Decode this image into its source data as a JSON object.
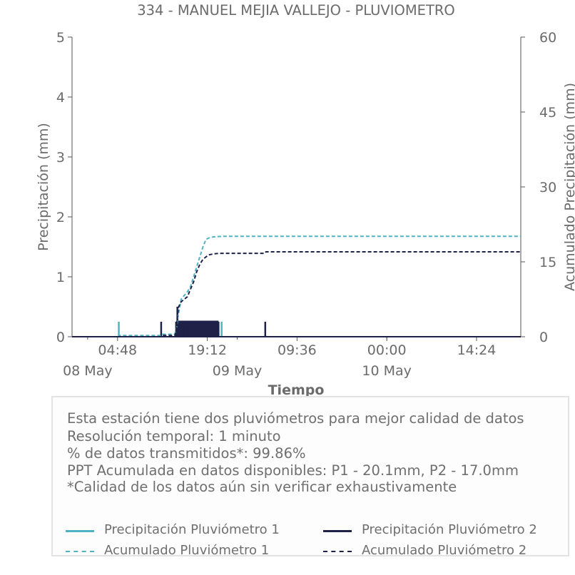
{
  "chart_data": {
    "type": "line",
    "title": "334 - MANUEL MEJIA VALLEJO - PLUVIOMETRO",
    "xlabel": "Tiempo",
    "ylabel_left": "Precipitación (mm)",
    "ylabel_right": "Acumulado Precipitación (mm)",
    "ylim_left": [
      0,
      5
    ],
    "ylim_right": [
      0,
      60
    ],
    "yticks_left": [
      "0",
      "1",
      "2",
      "3",
      "4",
      "5"
    ],
    "yticks_right": [
      "0",
      "15",
      "30",
      "45",
      "60"
    ],
    "x_major_ticks": [
      {
        "t": 4.8,
        "label": "04:48"
      },
      {
        "t": 19.2,
        "label": "19:12"
      },
      {
        "t": 33.6,
        "label": "09:36"
      },
      {
        "t": 48.0,
        "label": "00:00"
      },
      {
        "t": 62.4,
        "label": "14:24"
      }
    ],
    "x_date_labels": [
      {
        "t": 0,
        "label": "08 May"
      },
      {
        "t": 24,
        "label": "09 May"
      },
      {
        "t": 48,
        "label": "10 May"
      }
    ],
    "x_unit": "hours from 08 May 00:00",
    "xlim": [
      -2.5,
      69.5
    ],
    "series": [
      {
        "name": "Precipitación Pluviómetro 1",
        "axis": "left",
        "style": "solid",
        "color": "#4fb3c4",
        "points": [
          [
            5.0,
            0.25
          ],
          [
            14.2,
            0.25
          ],
          [
            14.6,
            0.25
          ],
          [
            15.0,
            0.25
          ],
          [
            15.4,
            0.25
          ],
          [
            15.8,
            0.25
          ],
          [
            16.2,
            0.25
          ],
          [
            16.6,
            0.25
          ],
          [
            17.0,
            0.25
          ],
          [
            17.4,
            0.25
          ],
          [
            17.8,
            0.25
          ],
          [
            18.2,
            0.25
          ],
          [
            18.6,
            0.25
          ],
          [
            19.0,
            0.25
          ],
          [
            19.4,
            0.25
          ],
          [
            19.8,
            0.25
          ],
          [
            20.2,
            0.25
          ],
          [
            20.5,
            0.25
          ],
          [
            21.0,
            0.25
          ],
          [
            21.5,
            0.25
          ]
        ]
      },
      {
        "name": "Precipitación Pluviómetro 2",
        "axis": "left",
        "style": "solid",
        "color": "#1e2148",
        "points": [
          [
            11.8,
            0.25
          ],
          [
            14.2,
            0.25
          ],
          [
            14.4,
            0.5
          ],
          [
            14.6,
            0.25
          ],
          [
            14.8,
            0.25
          ],
          [
            15.0,
            0.25
          ],
          [
            15.2,
            0.25
          ],
          [
            15.4,
            0.25
          ],
          [
            15.6,
            0.25
          ],
          [
            15.8,
            0.25
          ],
          [
            16.0,
            0.25
          ],
          [
            16.2,
            0.25
          ],
          [
            16.4,
            0.25
          ],
          [
            16.6,
            0.25
          ],
          [
            16.8,
            0.25
          ],
          [
            17.0,
            0.25
          ],
          [
            17.2,
            0.25
          ],
          [
            17.4,
            0.25
          ],
          [
            17.6,
            0.25
          ],
          [
            17.8,
            0.25
          ],
          [
            18.0,
            0.25
          ],
          [
            18.2,
            0.25
          ],
          [
            18.4,
            0.25
          ],
          [
            18.6,
            0.25
          ],
          [
            18.8,
            0.25
          ],
          [
            19.0,
            0.25
          ],
          [
            19.2,
            0.25
          ],
          [
            19.4,
            0.25
          ],
          [
            19.6,
            0.25
          ],
          [
            19.8,
            0.25
          ],
          [
            20.0,
            0.25
          ],
          [
            20.2,
            0.25
          ],
          [
            20.4,
            0.25
          ],
          [
            20.6,
            0.25
          ],
          [
            20.8,
            0.25
          ],
          [
            21.0,
            0.25
          ],
          [
            28.5,
            0.25
          ]
        ]
      },
      {
        "name": "Acumulado Pluviómetro 1",
        "axis": "right",
        "style": "dashed",
        "color": "#4fb3c4",
        "points": [
          [
            -2.5,
            0
          ],
          [
            4.9,
            0
          ],
          [
            5.1,
            0.25
          ],
          [
            11.7,
            0.25
          ],
          [
            11.9,
            0.5
          ],
          [
            14.0,
            0.5
          ],
          [
            14.3,
            2
          ],
          [
            14.5,
            4
          ],
          [
            15.0,
            7.5
          ],
          [
            16.0,
            9
          ],
          [
            16.5,
            10
          ],
          [
            17.0,
            12
          ],
          [
            17.5,
            14
          ],
          [
            18.0,
            16
          ],
          [
            18.5,
            18
          ],
          [
            19.0,
            19.5
          ],
          [
            19.5,
            19.8
          ],
          [
            20.2,
            20.0
          ],
          [
            21.5,
            20.1
          ],
          [
            69.5,
            20.1
          ]
        ]
      },
      {
        "name": "Acumulado Pluviómetro 2",
        "axis": "right",
        "style": "dashed",
        "color": "#1e2148",
        "points": [
          [
            -2.5,
            0
          ],
          [
            11.7,
            0
          ],
          [
            11.9,
            0.25
          ],
          [
            14.0,
            0.25
          ],
          [
            14.2,
            1
          ],
          [
            14.4,
            4
          ],
          [
            14.6,
            6
          ],
          [
            15.0,
            7
          ],
          [
            16.0,
            8
          ],
          [
            16.5,
            9.5
          ],
          [
            17.0,
            11
          ],
          [
            17.5,
            13
          ],
          [
            18.0,
            14.5
          ],
          [
            18.5,
            15.5
          ],
          [
            19.0,
            16
          ],
          [
            19.5,
            16.4
          ],
          [
            20.2,
            16.6
          ],
          [
            21.2,
            16.7
          ],
          [
            28.4,
            16.7
          ],
          [
            28.6,
            17.0
          ],
          [
            69.5,
            17.0
          ]
        ]
      }
    ],
    "legend_position": "bottom"
  },
  "info": {
    "line1": "Esta estación tiene dos pluviómetros para mejor calidad de datos",
    "line2": "Resolución temporal: 1 minuto",
    "line3": "% de datos transmitidos*: 99.86%",
    "line4": "PPT Acumulada en datos disponibles: P1 - 20.1mm, P2 - 17.0mm",
    "line5": "*Calidad de los datos aún sin verificar exhaustivamente"
  },
  "legend": [
    {
      "label": "Precipitación Pluviómetro 1",
      "color": "#4fb3c4",
      "style": "solid"
    },
    {
      "label": "Precipitación Pluviómetro 2",
      "color": "#1e2148",
      "style": "solid"
    },
    {
      "label": "Acumulado Pluviómetro 1",
      "color": "#4fb3c4",
      "style": "dashed"
    },
    {
      "label": "Acumulado Pluviómetro 2",
      "color": "#1e2148",
      "style": "dashed"
    }
  ]
}
